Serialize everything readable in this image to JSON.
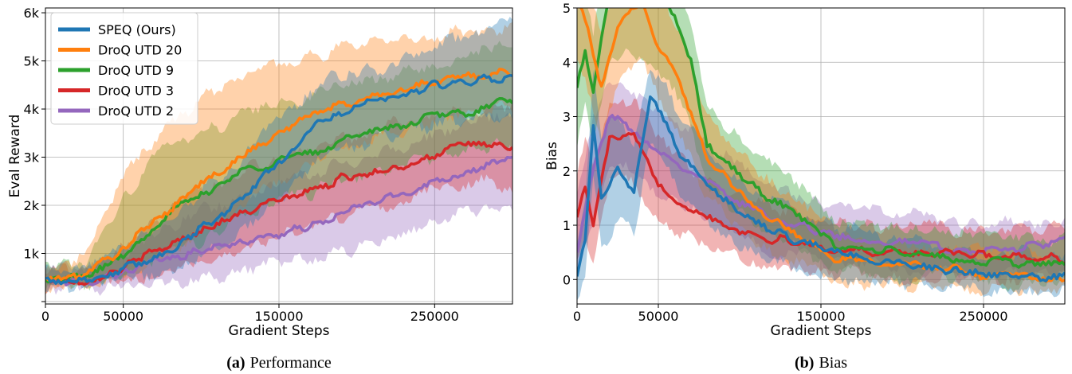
{
  "chart_data": [
    {
      "type": "line",
      "caption_letter": "(a)",
      "caption_text": "Performance",
      "xlabel": "Gradient Steps",
      "ylabel": "Eval Reward",
      "xlim": [
        0,
        300000
      ],
      "ylim": [
        -50,
        6100
      ],
      "xticks": [
        0,
        50000,
        150000,
        250000
      ],
      "xtick_labels": [
        "0",
        "50000",
        "150000",
        "250000"
      ],
      "yticks": [
        0,
        1000,
        2000,
        3000,
        4000,
        5000,
        6000
      ],
      "ytick_labels": [
        "",
        "1k",
        "2k",
        "3k",
        "4k",
        "5k",
        "6k"
      ],
      "grid": true,
      "legend_position": "top-left",
      "series": [
        {
          "name": "DroQ UTD 2",
          "color": "#9467bd",
          "x": [
            0,
            25000,
            50000,
            75000,
            100000,
            125000,
            150000,
            175000,
            200000,
            225000,
            250000,
            275000,
            300000
          ],
          "values": [
            450,
            420,
            620,
            850,
            1050,
            1250,
            1400,
            1600,
            1950,
            2200,
            2500,
            2750,
            2950
          ],
          "lower": [
            300,
            300,
            380,
            420,
            520,
            650,
            750,
            900,
            1100,
            1350,
            1650,
            1900,
            2000
          ],
          "upper": [
            700,
            620,
            1050,
            1500,
            1850,
            2150,
            2450,
            2650,
            3000,
            3200,
            3450,
            3700,
            3950
          ]
        },
        {
          "name": "DroQ UTD 3",
          "color": "#d62728",
          "x": [
            0,
            25000,
            50000,
            75000,
            100000,
            125000,
            150000,
            175000,
            200000,
            225000,
            250000,
            275000,
            300000
          ],
          "values": [
            450,
            450,
            700,
            1100,
            1500,
            1800,
            2100,
            2350,
            2650,
            2800,
            3050,
            3300,
            3200
          ],
          "lower": [
            300,
            330,
            420,
            600,
            850,
            1100,
            1350,
            1600,
            1900,
            2050,
            2300,
            2500,
            2400
          ],
          "upper": [
            700,
            650,
            1200,
            1800,
            2300,
            2700,
            3000,
            3200,
            3500,
            3700,
            3900,
            4000,
            4050
          ]
        },
        {
          "name": "DroQ UTD 9",
          "color": "#2ca02c",
          "x": [
            0,
            25000,
            50000,
            75000,
            100000,
            125000,
            150000,
            175000,
            200000,
            225000,
            250000,
            275000,
            300000
          ],
          "values": [
            450,
            500,
            950,
            1750,
            2200,
            2700,
            2950,
            3100,
            3500,
            3600,
            3850,
            3950,
            4200
          ],
          "lower": [
            300,
            330,
            500,
            900,
            1300,
            1750,
            2050,
            2300,
            2600,
            2750,
            3000,
            3100,
            3300
          ],
          "upper": [
            700,
            800,
            2200,
            3100,
            3550,
            3900,
            4150,
            4300,
            4600,
            4700,
            4900,
            5150,
            5300
          ]
        },
        {
          "name": "DroQ UTD 20",
          "color": "#ff7f0e",
          "x": [
            0,
            25000,
            50000,
            75000,
            100000,
            125000,
            150000,
            175000,
            200000,
            225000,
            250000,
            275000,
            300000
          ],
          "values": [
            450,
            550,
            1100,
            1800,
            2450,
            3000,
            3500,
            3950,
            4150,
            4400,
            4550,
            4700,
            4750
          ],
          "lower": [
            300,
            350,
            550,
            900,
            1450,
            2000,
            2550,
            3000,
            3250,
            3550,
            3750,
            3950,
            4000
          ],
          "upper": [
            700,
            900,
            2600,
            3600,
            4200,
            4650,
            4950,
            5150,
            5300,
            5450,
            5500,
            5600,
            5650
          ]
        },
        {
          "name": "SPEQ (Ours)",
          "color": "#1f77b4",
          "x": [
            0,
            25000,
            50000,
            75000,
            100000,
            125000,
            150000,
            175000,
            200000,
            225000,
            250000,
            275000,
            300000
          ],
          "values": [
            450,
            450,
            650,
            1000,
            1500,
            2100,
            2900,
            3700,
            4050,
            4250,
            4500,
            4550,
            4650
          ],
          "lower": [
            300,
            320,
            420,
            600,
            900,
            1400,
            2100,
            2900,
            3250,
            3500,
            3700,
            3800,
            3900
          ],
          "upper": [
            700,
            650,
            1050,
            1600,
            2250,
            2950,
            3800,
            4450,
            4750,
            4950,
            5250,
            5600,
            5850
          ]
        }
      ]
    },
    {
      "type": "line",
      "caption_letter": "(b)",
      "caption_text": "Bias",
      "xlabel": "Gradient Steps",
      "ylabel": "Bias",
      "xlim": [
        0,
        300000
      ],
      "ylim": [
        -0.45,
        5.0
      ],
      "xticks": [
        0,
        50000,
        150000,
        250000
      ],
      "xtick_labels": [
        "0",
        "50000",
        "150000",
        "250000"
      ],
      "yticks": [
        0,
        1,
        2,
        3,
        4,
        5
      ],
      "ytick_labels": [
        "0",
        "1",
        "2",
        "3",
        "4",
        "5"
      ],
      "grid": true,
      "series": [
        {
          "name": "DroQ UTD 2",
          "color": "#9467bd",
          "x": [
            0,
            10000,
            20000,
            30000,
            45000,
            60000,
            80000,
            100000,
            130000,
            160000,
            200000,
            250000,
            300000
          ],
          "values": [
            0.6,
            2.0,
            3.0,
            2.9,
            2.5,
            2.2,
            1.8,
            1.4,
            1.05,
            0.8,
            0.7,
            0.5,
            0.7
          ],
          "lower": [
            0.1,
            1.0,
            2.1,
            2.1,
            1.7,
            1.4,
            1.1,
            0.8,
            0.5,
            0.3,
            0.2,
            0.05,
            0.1
          ],
          "upper": [
            1.5,
            3.0,
            3.6,
            3.5,
            3.2,
            2.9,
            2.5,
            2.1,
            1.6,
            1.3,
            1.2,
            1.0,
            1.1
          ]
        },
        {
          "name": "DroQ UTD 3",
          "color": "#d62728",
          "x": [
            0,
            5000,
            10000,
            20000,
            35000,
            50000,
            65000,
            80000,
            100000,
            130000,
            160000,
            200000,
            250000,
            300000
          ],
          "values": [
            1.2,
            1.7,
            1.0,
            2.6,
            2.6,
            1.8,
            1.4,
            1.2,
            0.9,
            0.7,
            0.55,
            0.5,
            0.45,
            0.4
          ],
          "lower": [
            0.5,
            0.7,
            0.3,
            1.8,
            1.8,
            1.1,
            0.8,
            0.6,
            0.4,
            0.2,
            0.1,
            0.05,
            0.0,
            0.0
          ],
          "upper": [
            2.0,
            2.6,
            2.0,
            3.3,
            3.3,
            2.6,
            2.2,
            1.8,
            1.5,
            1.2,
            1.0,
            1.0,
            0.9,
            0.9
          ]
        },
        {
          "name": "DroQ UTD 9",
          "color": "#2ca02c",
          "x": [
            0,
            5000,
            10000,
            20000,
            30000,
            45000,
            60000,
            70000,
            80000,
            100000,
            130000,
            160000,
            200000,
            250000,
            300000
          ],
          "values": [
            3.6,
            4.2,
            3.5,
            5.3,
            5.6,
            5.4,
            4.8,
            4.0,
            2.5,
            1.9,
            1.3,
            0.6,
            0.5,
            0.3,
            0.3
          ],
          "lower": [
            2.5,
            3.2,
            2.4,
            4.0,
            4.2,
            4.0,
            3.5,
            2.8,
            1.7,
            1.2,
            0.7,
            0.15,
            0.05,
            -0.05,
            -0.1
          ],
          "upper": [
            4.8,
            5.3,
            4.5,
            6.2,
            6.5,
            6.2,
            5.7,
            4.8,
            3.2,
            2.6,
            1.9,
            1.1,
            1.0,
            0.8,
            0.7
          ]
        },
        {
          "name": "DroQ UTD 20",
          "color": "#ff7f0e",
          "x": [
            0,
            5000,
            15000,
            25000,
            40000,
            50000,
            60000,
            70000,
            80000,
            100000,
            130000,
            160000,
            200000,
            250000,
            300000
          ],
          "values": [
            5.3,
            4.8,
            3.5,
            4.6,
            5.2,
            4.3,
            3.8,
            3.1,
            2.3,
            1.6,
            0.9,
            0.4,
            0.3,
            0.1,
            0.0
          ],
          "lower": [
            4.2,
            3.7,
            2.5,
            3.6,
            4.1,
            3.3,
            2.8,
            2.2,
            1.5,
            0.9,
            0.35,
            -0.05,
            -0.1,
            -0.15,
            -0.2
          ],
          "upper": [
            6.2,
            5.8,
            4.5,
            5.6,
            6.2,
            5.3,
            4.8,
            4.0,
            3.1,
            2.3,
            1.5,
            0.9,
            0.7,
            0.5,
            0.4
          ]
        },
        {
          "name": "SPEQ (Ours)",
          "color": "#1f77b4",
          "x": [
            0,
            5000,
            10000,
            15000,
            25000,
            35000,
            45000,
            55000,
            65000,
            80000,
            100000,
            130000,
            160000,
            200000,
            250000,
            300000
          ],
          "values": [
            0.1,
            0.7,
            2.9,
            1.6,
            2.0,
            1.6,
            3.3,
            2.9,
            2.2,
            1.8,
            1.2,
            0.8,
            0.5,
            0.3,
            0.1,
            0.05
          ],
          "lower": [
            -0.3,
            0.0,
            1.8,
            0.5,
            1.0,
            0.9,
            2.5,
            2.1,
            1.5,
            1.1,
            0.6,
            0.25,
            0.0,
            -0.1,
            -0.2,
            -0.2
          ],
          "upper": [
            0.6,
            1.5,
            3.8,
            2.7,
            3.0,
            2.5,
            3.9,
            3.6,
            2.9,
            2.4,
            1.8,
            1.3,
            1.0,
            0.7,
            0.5,
            0.4
          ]
        }
      ]
    }
  ]
}
